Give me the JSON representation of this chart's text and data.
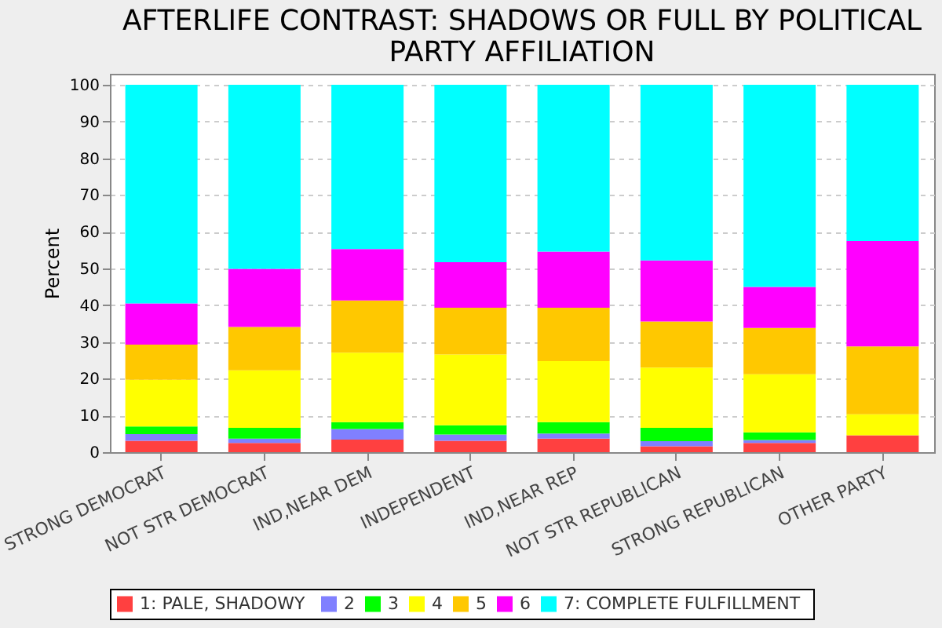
{
  "chart_data": {
    "type": "bar",
    "stacked": true,
    "title": "AFTERLIFE CONTRAST: SHADOWS OR FULL BY POLITICAL PARTY AFFILIATION",
    "ylabel": "Percent",
    "categories": [
      "STRONG DEMOCRAT",
      "NOT STR DEMOCRAT",
      "IND,NEAR DEM",
      "INDEPENDENT",
      "IND,NEAR REP",
      "NOT STR REPUBLICAN",
      "STRONG REPUBLICAN",
      "OTHER PARTY"
    ],
    "series": [
      {
        "name": "1:  PALE, SHADOWY",
        "color": "#ff4040",
        "values": [
          3.1,
          2.5,
          3.4,
          3.1,
          3.7,
          1.6,
          2.5,
          4.6
        ]
      },
      {
        "name": "2",
        "color": "#8080ff",
        "values": [
          1.8,
          1.2,
          2.9,
          1.7,
          1.4,
          1.4,
          0.8,
          0
        ]
      },
      {
        "name": "3",
        "color": "#00ff00",
        "values": [
          2.1,
          2.9,
          1.9,
          2.5,
          3.1,
          3.6,
          2.1,
          0
        ]
      },
      {
        "name": "4",
        "color": "#ffff00",
        "values": [
          12.7,
          15.7,
          18.9,
          19.3,
          16.6,
          16.4,
          15.8,
          5.7
        ]
      },
      {
        "name": "5",
        "color": "#ffc800",
        "values": [
          9.6,
          11.8,
          14.2,
          12.7,
          14.5,
          12.6,
          12.6,
          18.5
        ]
      },
      {
        "name": "6",
        "color": "#ff00ff",
        "values": [
          11.2,
          15.8,
          14.0,
          12.4,
          15.3,
          16.6,
          11.2,
          28.7
        ]
      },
      {
        "name": "7:  COMPLETE FULFILLMENT",
        "color": "#00ffff",
        "values": [
          59.5,
          50.1,
          44.7,
          48.3,
          45.4,
          47.8,
          55.0,
          42.5
        ]
      }
    ],
    "ylim": [
      0,
      103
    ],
    "yticks": [
      0,
      10,
      20,
      30,
      40,
      50,
      60,
      70,
      80,
      90,
      100
    ],
    "grid": "y",
    "legend": "bottom"
  }
}
